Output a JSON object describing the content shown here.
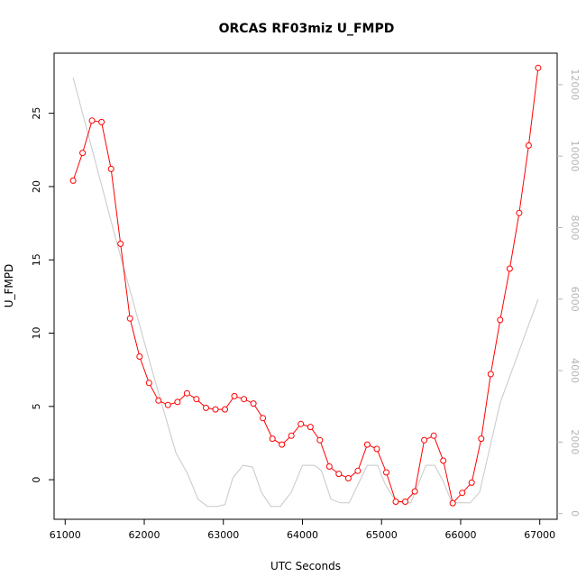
{
  "chart_data": {
    "type": "line",
    "title": "ORCAS RF03miz U_FMPD",
    "xlabel": "UTC Seconds",
    "ylabel": "U_FMPD",
    "xlim": [
      60860,
      67220
    ],
    "ylim": [
      -2.7,
      29.1
    ],
    "y2lim": [
      -160,
      12880
    ],
    "xticks": [
      61000,
      62000,
      63000,
      64000,
      65000,
      66000,
      67000
    ],
    "yticks": [
      0,
      5,
      10,
      15,
      20,
      25
    ],
    "y2ticks": [
      0,
      2000,
      4000,
      6000,
      8000,
      10000,
      12000
    ],
    "colors": {
      "primary": "#ff0000",
      "secondary": "#c8c8c8",
      "y2axis": "#b4b4b4"
    },
    "series": [
      {
        "axis": "left",
        "style": "line-with-circles",
        "x": [
          61100,
          61220,
          61340,
          61460,
          61580,
          61700,
          61820,
          61940,
          62060,
          62180,
          62300,
          62420,
          62540,
          62660,
          62780,
          62900,
          63020,
          63140,
          63260,
          63380,
          63500,
          63620,
          63740,
          63860,
          63980,
          64100,
          64220,
          64340,
          64460,
          64580,
          64700,
          64820,
          64940,
          65060,
          65180,
          65300,
          65420,
          65540,
          65660,
          65780,
          65900,
          66020,
          66140,
          66260,
          66380,
          66500,
          66620,
          66740,
          66860,
          66980
        ],
        "values": [
          20.4,
          22.3,
          24.5,
          24.4,
          21.2,
          16.1,
          11.0,
          8.4,
          6.6,
          5.4,
          5.1,
          5.3,
          5.9,
          5.5,
          4.9,
          4.8,
          4.8,
          5.7,
          5.5,
          5.2,
          4.2,
          2.8,
          2.4,
          3.0,
          3.8,
          3.6,
          2.7,
          0.9,
          0.4,
          0.1,
          0.6,
          2.4,
          2.1,
          0.5,
          -1.5,
          -1.5,
          -0.8,
          2.7,
          3.0,
          1.3,
          -1.6,
          -0.9,
          -0.2,
          2.8,
          7.2,
          10.9,
          14.4,
          18.2,
          22.8,
          28.1
        ]
      },
      {
        "axis": "right",
        "style": "line",
        "x": [
          61100,
          61650,
          62100,
          62400,
          62550,
          62680,
          62800,
          62920,
          63020,
          63120,
          63250,
          63370,
          63480,
          63600,
          63720,
          63860,
          64000,
          64150,
          64240,
          64360,
          64480,
          64590,
          64700,
          64820,
          64950,
          65050,
          65150,
          65260,
          65370,
          65460,
          65560,
          65670,
          65780,
          65890,
          66000,
          66120,
          66240,
          66500,
          66980
        ],
        "values": [
          12200,
          7600,
          4000,
          1700,
          1100,
          400,
          200,
          200,
          250,
          1000,
          1350,
          1300,
          600,
          200,
          200,
          600,
          1350,
          1350,
          1200,
          400,
          300,
          300,
          800,
          1350,
          1350,
          800,
          450,
          300,
          300,
          800,
          1350,
          1350,
          900,
          300,
          300,
          300,
          600,
          3100,
          6000
        ]
      }
    ]
  }
}
